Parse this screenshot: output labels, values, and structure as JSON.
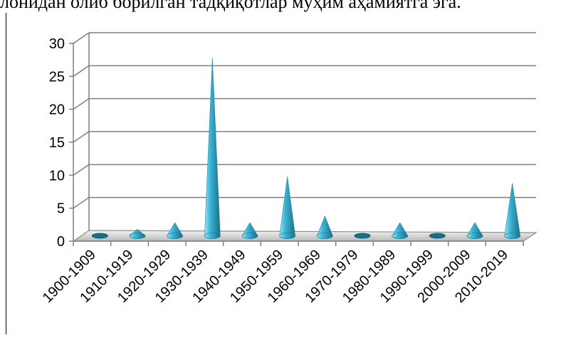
{
  "caption": "лонидан олиб борилган тадқиқотлар муҳим аҳамиятга эга.",
  "chart_data": {
    "type": "bar",
    "style": "3d-cone",
    "categories": [
      "1900-1909",
      "1910-1919",
      "1920-1929",
      "1930-1939",
      "1940-1949",
      "1950-1959",
      "1960-1969",
      "1970-1979",
      "1980-1989",
      "1990-1999",
      "2000-2009",
      "2010-2019"
    ],
    "values": [
      0,
      1,
      2,
      27,
      2,
      9,
      3,
      0,
      2,
      0,
      2,
      8
    ],
    "ylim": [
      0,
      30
    ],
    "yticks": [
      0,
      5,
      10,
      15,
      20,
      25,
      30
    ],
    "grid": true,
    "legend": "none",
    "colors": {
      "cone_light": "#9fe6f7",
      "cone_mid": "#3cb6d6",
      "cone_dark": "#1a6f88",
      "grid": "#7f7f7f",
      "floor": "#8c8c8c"
    }
  }
}
